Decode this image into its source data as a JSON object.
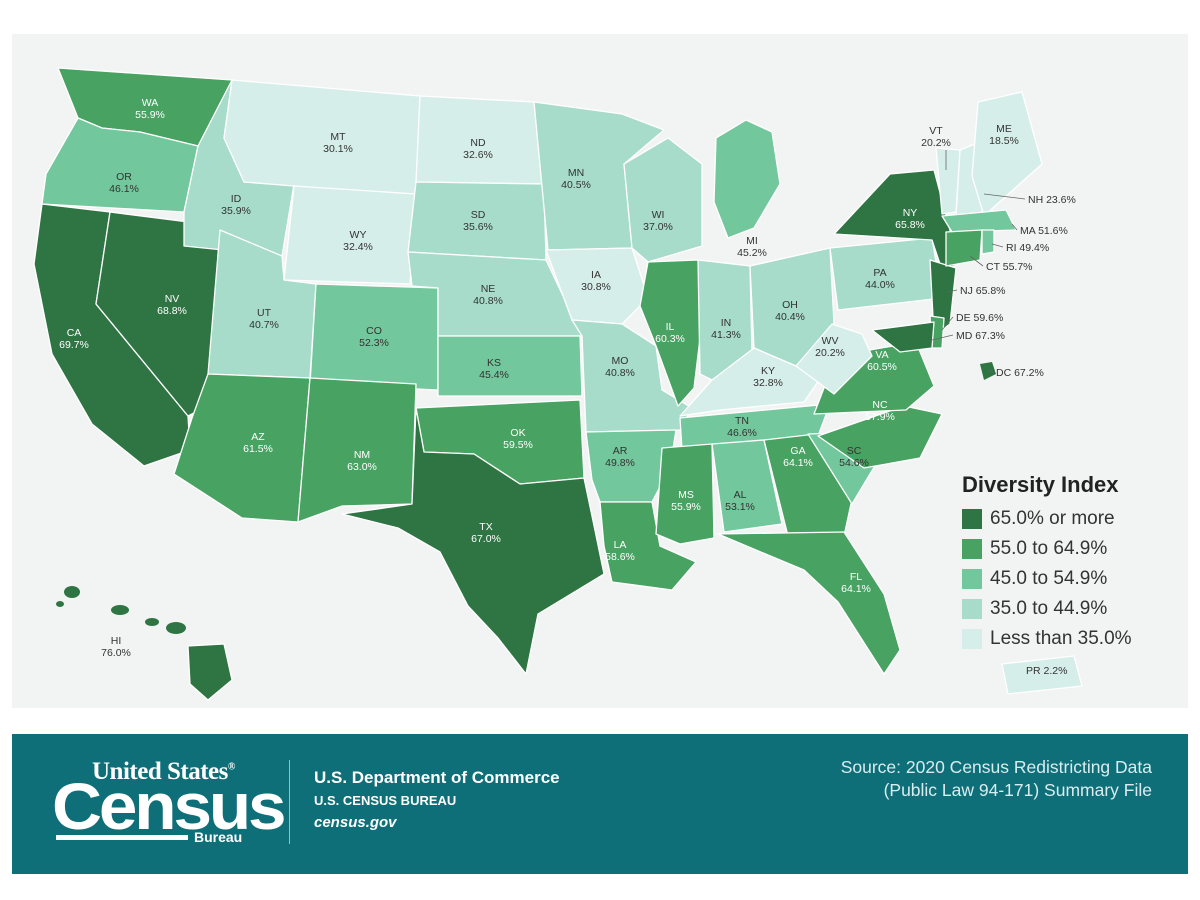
{
  "legend": {
    "title": "Diversity Index",
    "items": [
      {
        "label": "65.0% or more",
        "color": "#2e7543"
      },
      {
        "label": "55.0 to 64.9%",
        "color": "#48a262"
      },
      {
        "label": "45.0 to 54.9%",
        "color": "#73c79c"
      },
      {
        "label": "35.0 to 44.9%",
        "color": "#a6dcc9"
      },
      {
        "label": "Less than 35.0%",
        "color": "#d6eee9"
      }
    ]
  },
  "states": [
    {
      "abbr": "WA",
      "value": "55.9%",
      "cls": 1
    },
    {
      "abbr": "OR",
      "value": "46.1%",
      "cls": 2
    },
    {
      "abbr": "CA",
      "value": "69.7%",
      "cls": 0
    },
    {
      "abbr": "NV",
      "value": "68.8%",
      "cls": 0
    },
    {
      "abbr": "ID",
      "value": "35.9%",
      "cls": 3
    },
    {
      "abbr": "MT",
      "value": "30.1%",
      "cls": 4
    },
    {
      "abbr": "WY",
      "value": "32.4%",
      "cls": 4
    },
    {
      "abbr": "UT",
      "value": "40.7%",
      "cls": 3
    },
    {
      "abbr": "AZ",
      "value": "61.5%",
      "cls": 1
    },
    {
      "abbr": "CO",
      "value": "52.3%",
      "cls": 2
    },
    {
      "abbr": "NM",
      "value": "63.0%",
      "cls": 1
    },
    {
      "abbr": "ND",
      "value": "32.6%",
      "cls": 4
    },
    {
      "abbr": "SD",
      "value": "35.6%",
      "cls": 3
    },
    {
      "abbr": "NE",
      "value": "40.8%",
      "cls": 3
    },
    {
      "abbr": "KS",
      "value": "45.4%",
      "cls": 2
    },
    {
      "abbr": "OK",
      "value": "59.5%",
      "cls": 1
    },
    {
      "abbr": "TX",
      "value": "67.0%",
      "cls": 0
    },
    {
      "abbr": "MN",
      "value": "40.5%",
      "cls": 3
    },
    {
      "abbr": "IA",
      "value": "30.8%",
      "cls": 4
    },
    {
      "abbr": "MO",
      "value": "40.8%",
      "cls": 3
    },
    {
      "abbr": "AR",
      "value": "49.8%",
      "cls": 2
    },
    {
      "abbr": "LA",
      "value": "58.6%",
      "cls": 1
    },
    {
      "abbr": "WI",
      "value": "37.0%",
      "cls": 3
    },
    {
      "abbr": "IL",
      "value": "60.3%",
      "cls": 1
    },
    {
      "abbr": "MI",
      "value": "45.2%",
      "cls": 2
    },
    {
      "abbr": "IN",
      "value": "41.3%",
      "cls": 3
    },
    {
      "abbr": "OH",
      "value": "40.4%",
      "cls": 3
    },
    {
      "abbr": "KY",
      "value": "32.8%",
      "cls": 4
    },
    {
      "abbr": "TN",
      "value": "46.6%",
      "cls": 2
    },
    {
      "abbr": "MS",
      "value": "55.9%",
      "cls": 1
    },
    {
      "abbr": "AL",
      "value": "53.1%",
      "cls": 2
    },
    {
      "abbr": "GA",
      "value": "64.1%",
      "cls": 1
    },
    {
      "abbr": "FL",
      "value": "64.1%",
      "cls": 1
    },
    {
      "abbr": "SC",
      "value": "54.6%",
      "cls": 2
    },
    {
      "abbr": "NC",
      "value": "57.9%",
      "cls": 1
    },
    {
      "abbr": "VA",
      "value": "60.5%",
      "cls": 1
    },
    {
      "abbr": "WV",
      "value": "20.2%",
      "cls": 4
    },
    {
      "abbr": "PA",
      "value": "44.0%",
      "cls": 3
    },
    {
      "abbr": "NY",
      "value": "65.8%",
      "cls": 0
    },
    {
      "abbr": "VT",
      "value": "20.2%",
      "cls": 4
    },
    {
      "abbr": "ME",
      "value": "18.5%",
      "cls": 4
    },
    {
      "abbr": "NH",
      "value": "23.6%",
      "cls": 4
    },
    {
      "abbr": "MA",
      "value": "51.6%",
      "cls": 2
    },
    {
      "abbr": "RI",
      "value": "49.4%",
      "cls": 2
    },
    {
      "abbr": "CT",
      "value": "55.7%",
      "cls": 1
    },
    {
      "abbr": "NJ",
      "value": "65.8%",
      "cls": 0
    },
    {
      "abbr": "DE",
      "value": "59.6%",
      "cls": 1
    },
    {
      "abbr": "MD",
      "value": "67.3%",
      "cls": 0
    },
    {
      "abbr": "DC",
      "value": "67.2%",
      "cls": 0
    },
    {
      "abbr": "HI",
      "value": "76.0%",
      "cls": 0
    },
    {
      "abbr": "PR",
      "value": "2.2%",
      "cls": 4
    }
  ],
  "footer": {
    "logo_top": "United States",
    "logo_reg": "®",
    "logo_main": "Census",
    "logo_bureau": "Bureau",
    "department": "U.S. Department of Commerce",
    "bureau": "U.S. CENSUS BUREAU",
    "website": "census.gov",
    "source_line1": "Source: 2020 Census Redistricting Data",
    "source_line2": "(Public Law 94-171) Summary File"
  }
}
